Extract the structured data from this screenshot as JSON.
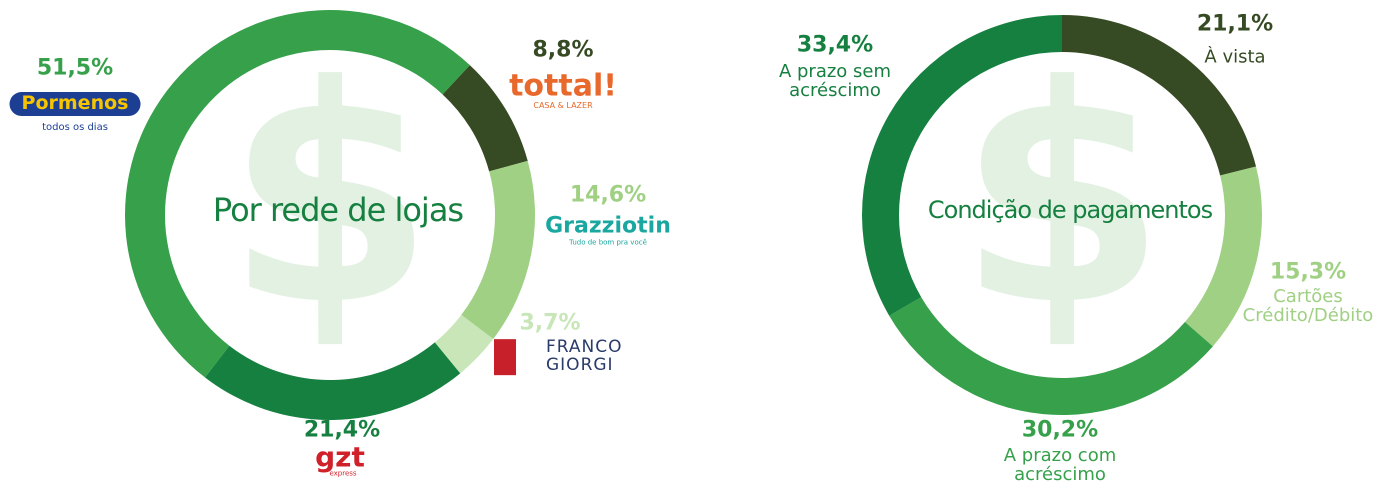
{
  "chart_data": [
    {
      "type": "pie",
      "title": "Por rede de lojas",
      "watermark": "$",
      "categories": [
        "tottal!",
        "Grazziotin",
        "FRANCO GIORGI",
        "gzt",
        "Pormenos"
      ],
      "taglines": [
        "CASA & LAZER",
        "Tudo de bom pra você",
        null,
        "express",
        "todos os dias"
      ],
      "values": [
        8.8,
        14.6,
        3.7,
        21.4,
        51.5
      ],
      "value_labels": [
        "8,8%",
        "14,6%",
        "3,7%",
        "21,4%",
        "51,5%"
      ],
      "colors": [
        "#364b24",
        "#9fd083",
        "#c8e6b8",
        "#168040",
        "#36a04a"
      ]
    },
    {
      "type": "pie",
      "title": "Condição de pagamentos",
      "watermark": "$",
      "categories": [
        "À vista",
        "Cartões Crédito/Débito",
        "A prazo com acréscimo",
        "A prazo sem acréscimo"
      ],
      "values": [
        21.1,
        15.3,
        30.2,
        33.4
      ],
      "value_labels": [
        "21,1%",
        "15,3%",
        "30,2%",
        "33,4%"
      ],
      "colors": [
        "#364b24",
        "#9fd083",
        "#36a04a",
        "#168040"
      ]
    }
  ]
}
